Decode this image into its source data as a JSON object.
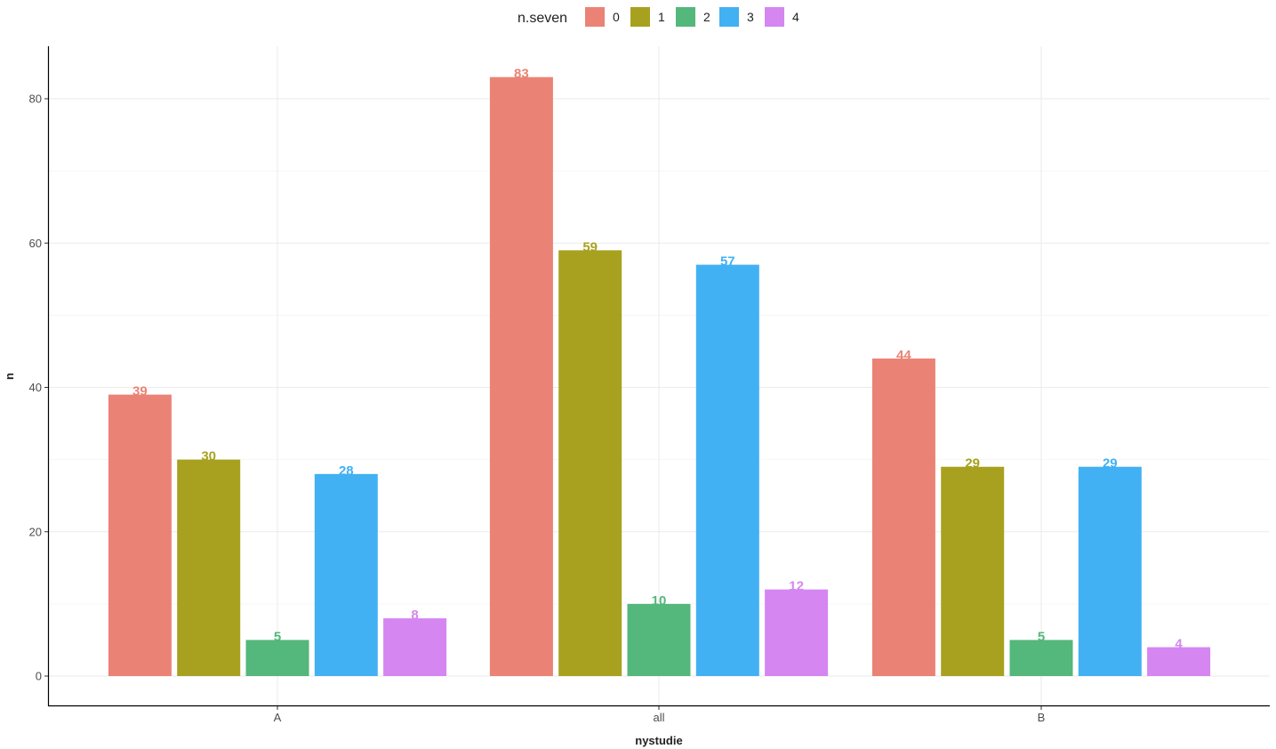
{
  "chart_data": {
    "type": "bar",
    "title": "",
    "xlabel": "nystudie",
    "ylabel": "n",
    "categories": [
      "A",
      "all",
      "B"
    ],
    "ylim": [
      -4,
      87
    ],
    "yticks": [
      0,
      20,
      40,
      60,
      80
    ],
    "grid": true,
    "legend_position": "top",
    "legend": {
      "title": "n.seven",
      "entries": [
        "0",
        "1",
        "2",
        "3",
        "4"
      ]
    },
    "series": [
      {
        "name": "0",
        "color": "#EA8375",
        "values": [
          39,
          83,
          44
        ]
      },
      {
        "name": "1",
        "color": "#A8A11F",
        "values": [
          30,
          59,
          29
        ]
      },
      {
        "name": "2",
        "color": "#54B77B",
        "values": [
          5,
          10,
          5
        ]
      },
      {
        "name": "3",
        "color": "#42B1F3",
        "values": [
          28,
          57,
          29
        ]
      },
      {
        "name": "4",
        "color": "#D586F1",
        "values": [
          8,
          12,
          4
        ]
      }
    ]
  }
}
